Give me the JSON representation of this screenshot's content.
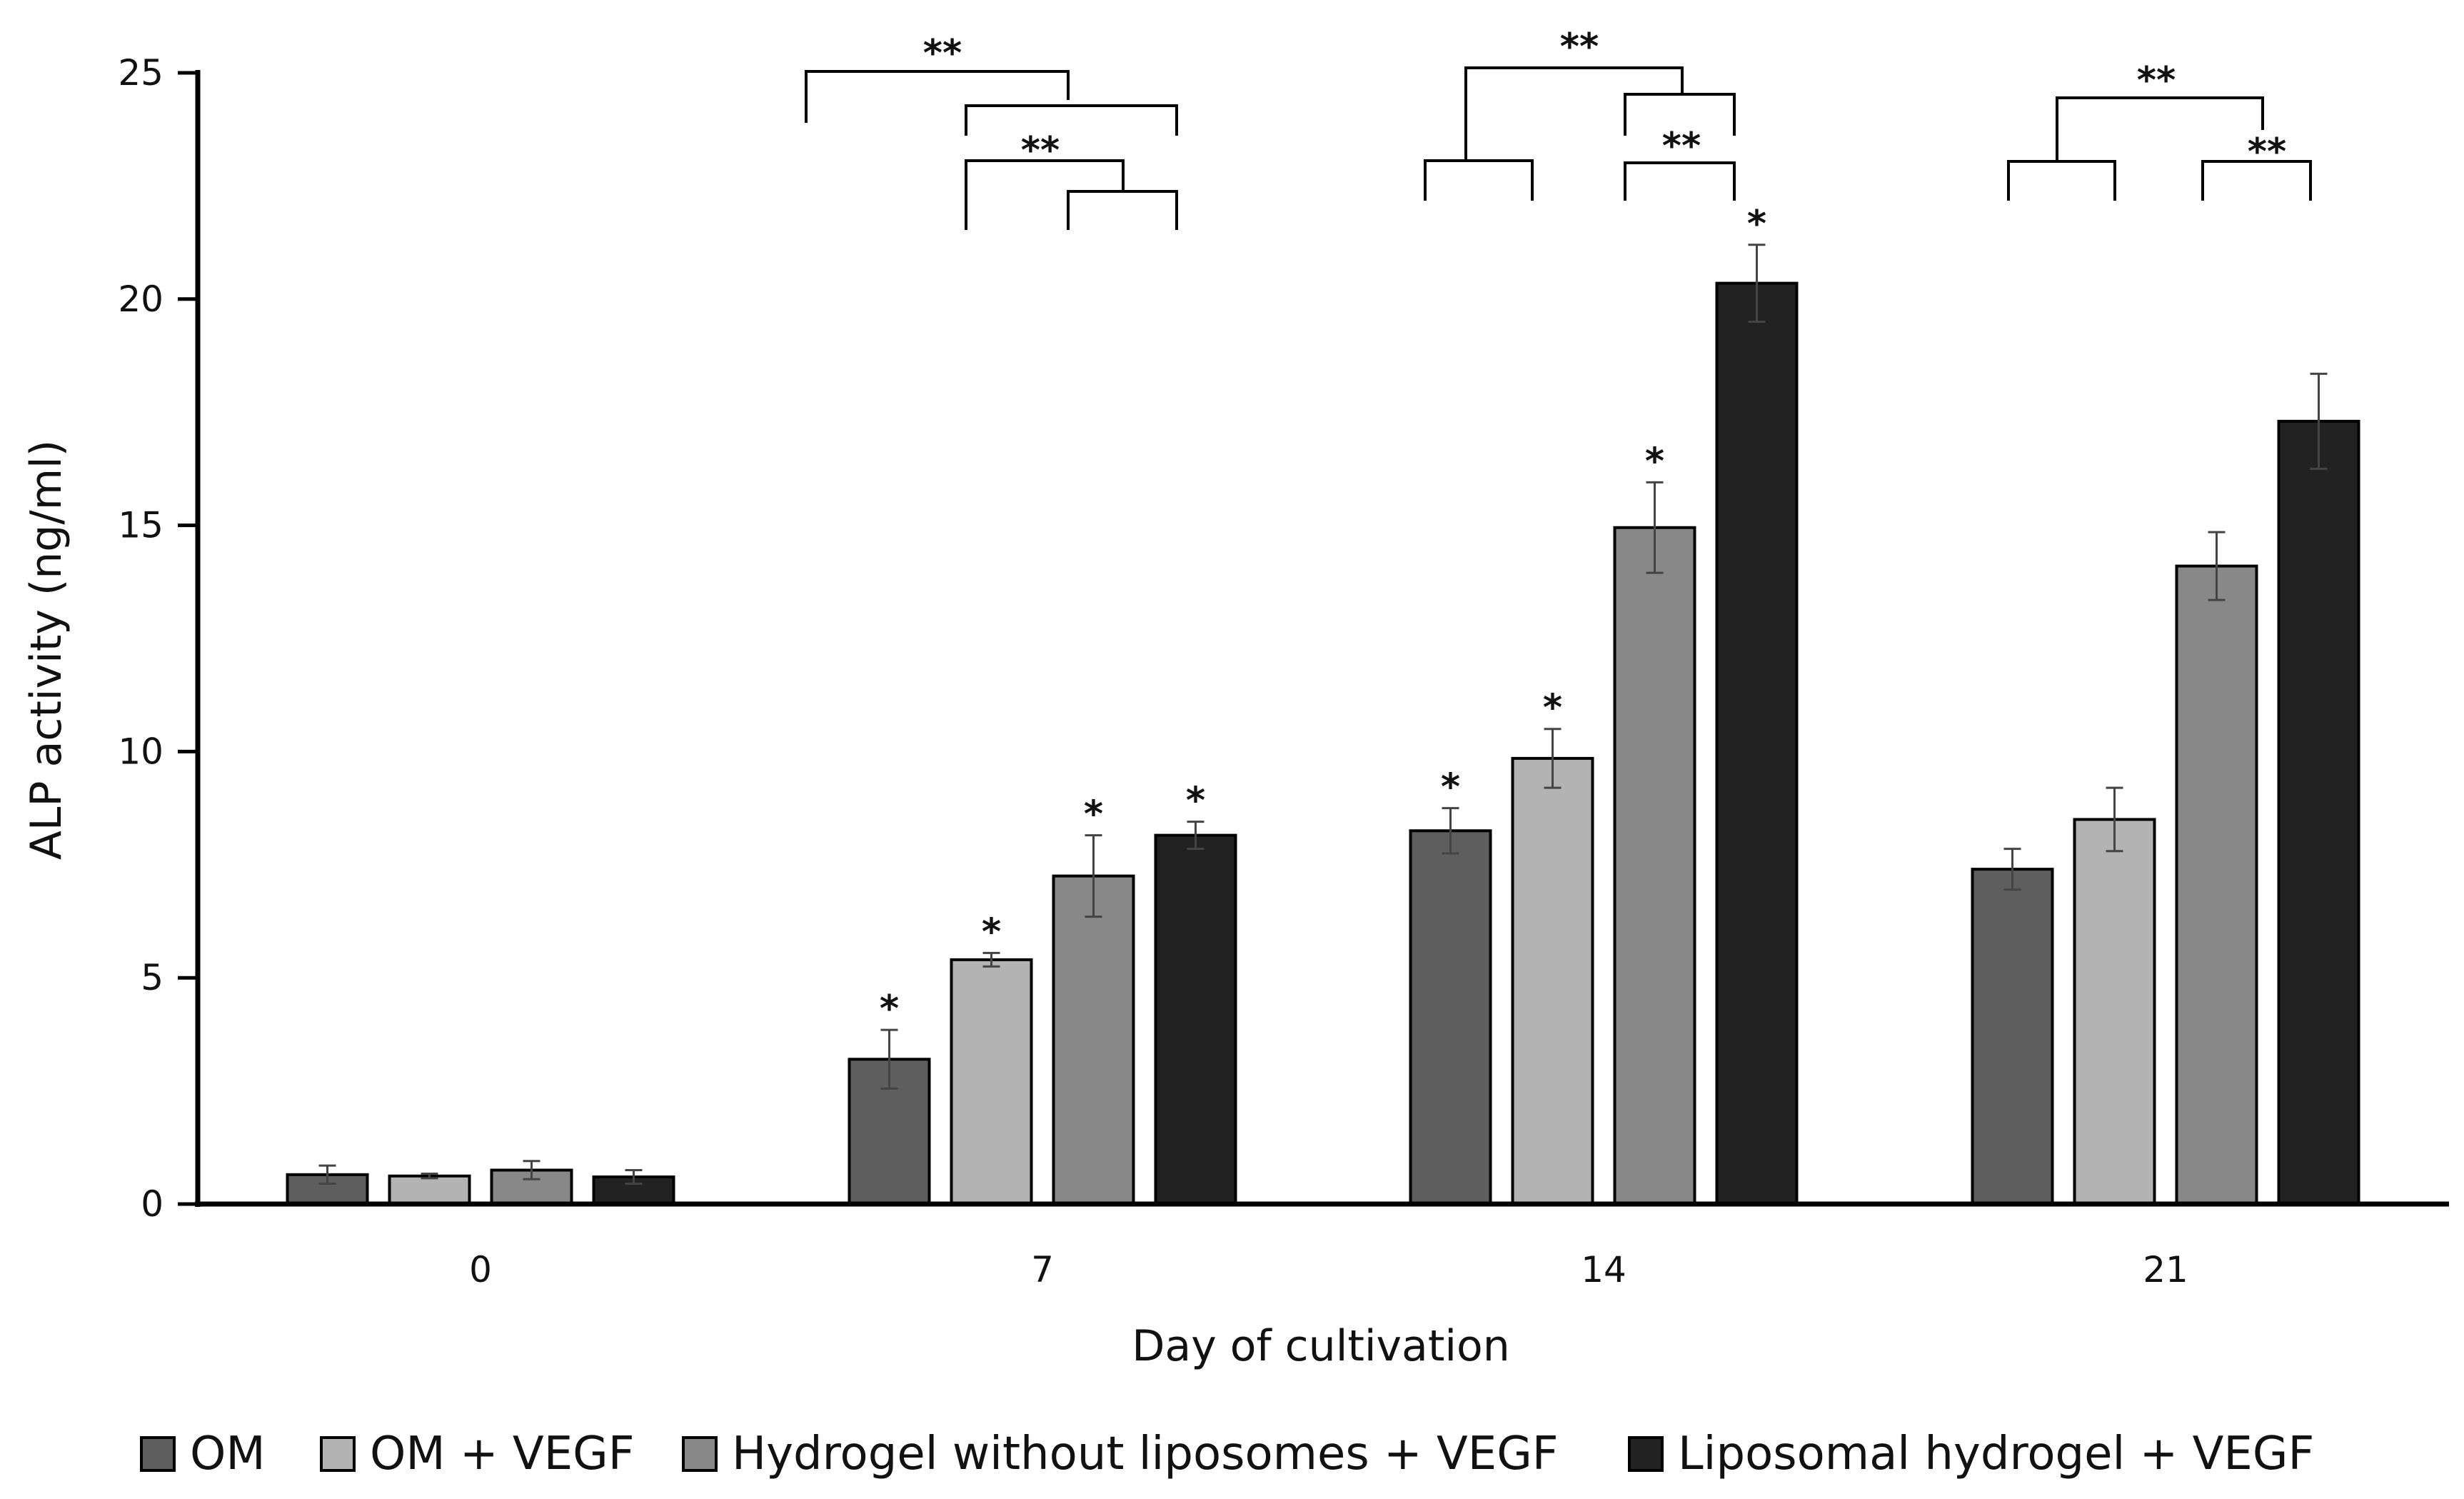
{
  "chart_data": {
    "type": "bar",
    "title": "",
    "xlabel": "Day of cultivation",
    "ylabel": "ALP activity (ng/ml)",
    "ylim": [
      0,
      25
    ],
    "yticks": [
      "0",
      "5",
      "10",
      "15",
      "20",
      "25"
    ],
    "categories": [
      "0",
      "7",
      "14",
      "21"
    ],
    "series": [
      {
        "name": "OM",
        "color": "#5e5e5e",
        "values": [
          0.65,
          3.2,
          8.25,
          7.4
        ],
        "errors": [
          0.2,
          0.65,
          0.5,
          0.45
        ],
        "stars": [
          "",
          "*",
          "*",
          ""
        ]
      },
      {
        "name": "OM + VEGF",
        "color": "#b3b3b3",
        "values": [
          0.62,
          5.4,
          9.85,
          8.5
        ],
        "errors": [
          0.05,
          0.15,
          0.65,
          0.7
        ],
        "stars": [
          "",
          "*",
          "*",
          ""
        ]
      },
      {
        "name": "Hydrogel without liposomes + VEGF",
        "color": "#888888",
        "values": [
          0.75,
          7.25,
          14.95,
          14.1
        ],
        "errors": [
          0.2,
          0.9,
          1.0,
          0.75
        ],
        "stars": [
          "",
          "*",
          "*",
          ""
        ]
      },
      {
        "name": "Liposomal hydrogel + VEGF",
        "color": "#222222",
        "values": [
          0.6,
          8.15,
          20.35,
          17.3
        ],
        "errors": [
          0.15,
          0.3,
          0.85,
          1.05
        ],
        "stars": [
          "",
          "*",
          "*",
          ""
        ]
      }
    ],
    "significance_label": "**",
    "legend_position": "bottom",
    "grid": false
  }
}
